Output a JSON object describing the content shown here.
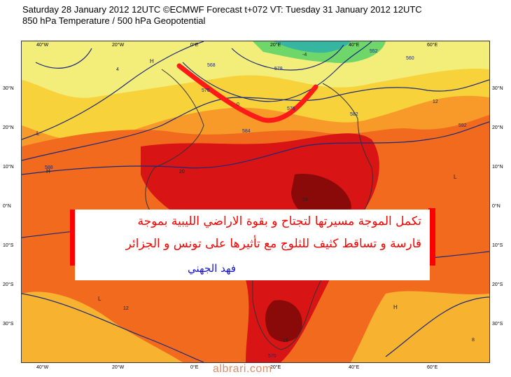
{
  "header": {
    "line1": "Saturday 28 January 2012 12UTC ©ECMWF Forecast t+072 VT: Tuesday 31 January 2012 12UTC",
    "line2": "850 hPa Temperature / 500 hPa Geopotential"
  },
  "map": {
    "longitude_labels": [
      "40°W",
      "20°W",
      "0°E",
      "20°E",
      "40°E",
      "60°E"
    ],
    "latitude_labels": [
      "30°N",
      "20°N",
      "10°N",
      "0°N",
      "10°S",
      "20°S",
      "30°S"
    ],
    "contour_labels": [
      "576",
      "568",
      "584",
      "588",
      "592",
      "560",
      "552",
      "582",
      "578",
      "570"
    ],
    "temperature_labels": [
      "20",
      "24",
      "16",
      "12",
      "8",
      "4",
      "0",
      "-4"
    ],
    "colors": {
      "hot_dark": "#8a0a0a",
      "hot": "#d81414",
      "warm": "#f26a1e",
      "orange": "#f79a2a",
      "yellow": "#f7d23a",
      "light_yellow": "#f3ee7a",
      "green": "#6fd66a",
      "contour": "#1b2a7a",
      "trough_annotation": "#ff1a1a"
    }
  },
  "annotation": {
    "line1": "تكمل الموجة مسيرتها لتجتاح و بقوة الاراضي الليبية بموجة",
    "line2": "قارسة و تساقط كثيف للثلوج مع تأثيرها على تونس و الجزائر",
    "author": "فهد الجهني"
  },
  "watermark": "albrari.com"
}
